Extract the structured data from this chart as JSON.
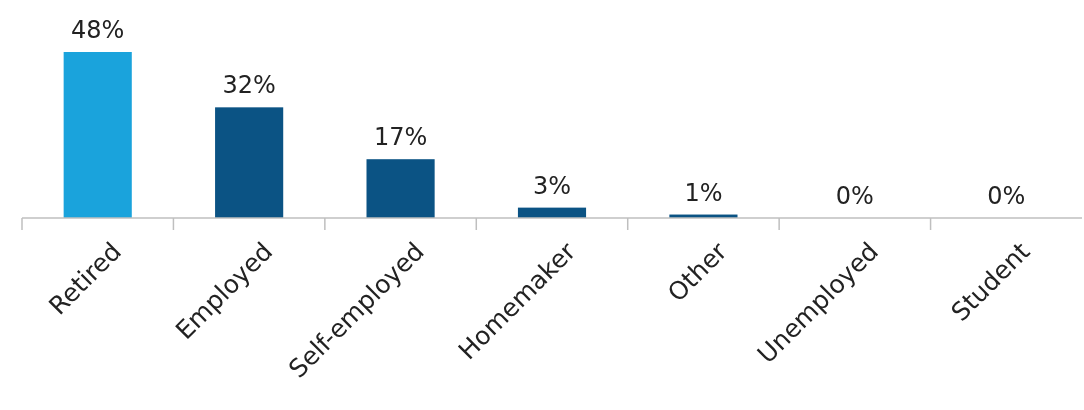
{
  "chart_data": {
    "type": "bar",
    "categories": [
      "Retired",
      "Employed",
      "Self-employed",
      "Homemaker",
      "Other",
      "Unemployed",
      "Student"
    ],
    "values": [
      48,
      32,
      17,
      3,
      1,
      0,
      0
    ],
    "colors": [
      "#1aa3dc",
      "#0b5384",
      "#0b5384",
      "#0b5384",
      "#0b5384",
      "#0b5384",
      "#0b5384"
    ],
    "value_labels": [
      "48%",
      "32%",
      "17%",
      "3%",
      "1%",
      "0%",
      "0%"
    ],
    "relative": false
  }
}
